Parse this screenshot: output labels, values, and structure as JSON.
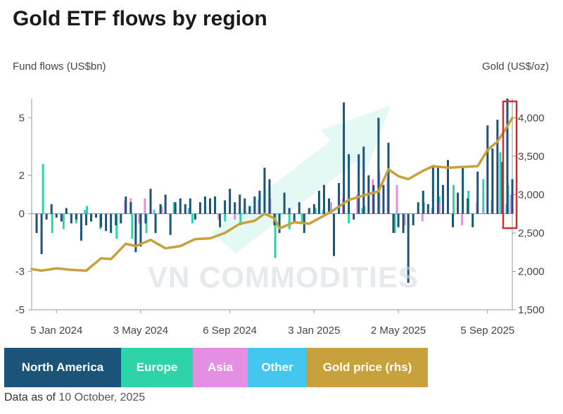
{
  "title": "Gold ETF flows by region",
  "left_axis_title": "Fund flows (US$bn)",
  "right_axis_title": "Gold (US$/oz)",
  "watermark": "VN COMMODITIES",
  "footer": {
    "prefix": "Data as of",
    "date": "10 October, 2025"
  },
  "colors": {
    "north_america": "#1b5379",
    "europe": "#2ed3a8",
    "asia": "#e58fe4",
    "other": "#44c6ef",
    "gold": "#c9a13c",
    "highlight": "#d62e2e",
    "watermark_arrow": "#2ed3a8"
  },
  "legend": [
    {
      "label": "North America",
      "color": "#1b5379"
    },
    {
      "label": "Europe",
      "color": "#2ed3a8"
    },
    {
      "label": "Asia",
      "color": "#e58fe4"
    },
    {
      "label": "Other",
      "color": "#44c6ef"
    },
    {
      "label": "Gold price (rhs)",
      "color": "#c9a13c"
    }
  ],
  "chart_data": {
    "type": "bar",
    "x_ticks": [
      "5 Jan 2024",
      "3 May 2024",
      "6 Sep 2024",
      "3 Jan 2025",
      "2 May 2025",
      "5 Sep 2025"
    ],
    "x_range": [
      "2023-12-01",
      "2025-10-10"
    ],
    "y_left": {
      "ticks": [
        5,
        2,
        0,
        -3,
        -5
      ],
      "range": [
        -5,
        6
      ]
    },
    "y_right": {
      "ticks": [
        4000,
        3500,
        3000,
        2500,
        2000,
        1500
      ],
      "range": [
        1500,
        4250
      ]
    },
    "series": [
      {
        "name": "North America",
        "values": [
          [
            "2023-12-08",
            -1.0
          ],
          [
            "2023-12-15",
            -2.1
          ],
          [
            "2023-12-22",
            -0.3
          ],
          [
            "2023-12-29",
            0.5
          ],
          [
            "2024-01-05",
            -0.2
          ],
          [
            "2024-01-12",
            -0.4
          ],
          [
            "2024-01-19",
            0.3
          ],
          [
            "2024-01-26",
            -0.5
          ],
          [
            "2024-02-02",
            -0.3
          ],
          [
            "2024-02-09",
            -1.4
          ],
          [
            "2024-02-16",
            -0.6
          ],
          [
            "2024-02-23",
            -0.4
          ],
          [
            "2024-03-01",
            -0.2
          ],
          [
            "2024-03-08",
            -0.7
          ],
          [
            "2024-03-15",
            -0.9
          ],
          [
            "2024-03-22",
            -1.0
          ],
          [
            "2024-03-29",
            -0.6
          ],
          [
            "2024-04-05",
            -0.5
          ],
          [
            "2024-04-12",
            0.9
          ],
          [
            "2024-04-19",
            0.6
          ],
          [
            "2024-04-26",
            -2.0
          ],
          [
            "2024-05-03",
            -1.7
          ],
          [
            "2024-05-10",
            -0.5
          ],
          [
            "2024-05-17",
            1.3
          ],
          [
            "2024-05-24",
            -1.0
          ],
          [
            "2024-05-31",
            0.5
          ],
          [
            "2024-06-07",
            1.0
          ],
          [
            "2024-06-14",
            -1.1
          ],
          [
            "2024-06-21",
            0.6
          ],
          [
            "2024-06-28",
            0.8
          ],
          [
            "2024-07-05",
            0.5
          ],
          [
            "2024-07-12",
            0.8
          ],
          [
            "2024-07-19",
            -0.3
          ],
          [
            "2024-07-26",
            0.6
          ],
          [
            "2024-08-02",
            0.9
          ],
          [
            "2024-08-09",
            0.8
          ],
          [
            "2024-08-16",
            0.9
          ],
          [
            "2024-08-23",
            -0.7
          ],
          [
            "2024-08-30",
            0.7
          ],
          [
            "2024-09-06",
            1.3
          ],
          [
            "2024-09-13",
            0.6
          ],
          [
            "2024-09-20",
            1.0
          ],
          [
            "2024-09-27",
            0.8
          ],
          [
            "2024-10-04",
            0.4
          ],
          [
            "2024-10-11",
            0.9
          ],
          [
            "2024-10-18",
            1.2
          ],
          [
            "2024-10-25",
            2.4
          ],
          [
            "2024-11-01",
            1.8
          ],
          [
            "2024-11-08",
            -0.6
          ],
          [
            "2024-11-15",
            -1.0
          ],
          [
            "2024-11-22",
            1.1
          ],
          [
            "2024-11-29",
            0.3
          ],
          [
            "2024-12-06",
            -0.4
          ],
          [
            "2024-12-13",
            0.6
          ],
          [
            "2024-12-20",
            -1.0
          ],
          [
            "2024-12-27",
            0.3
          ],
          [
            "2025-01-03",
            0.5
          ],
          [
            "2025-01-10",
            1.2
          ],
          [
            "2025-01-17",
            1.5
          ],
          [
            "2025-01-24",
            0.8
          ],
          [
            "2025-01-31",
            -2.2
          ],
          [
            "2025-02-07",
            1.6
          ],
          [
            "2025-02-14",
            5.8
          ],
          [
            "2025-02-21",
            3.1
          ],
          [
            "2025-02-28",
            -0.3
          ],
          [
            "2025-03-07",
            3.1
          ],
          [
            "2025-03-14",
            3.5
          ],
          [
            "2025-03-21",
            2.0
          ],
          [
            "2025-03-28",
            1.5
          ],
          [
            "2025-04-04",
            5.0
          ],
          [
            "2025-04-11",
            1.5
          ],
          [
            "2025-04-18",
            3.7
          ],
          [
            "2025-04-25",
            -1.0
          ],
          [
            "2025-05-02",
            -0.7
          ],
          [
            "2025-05-09",
            -1.0
          ],
          [
            "2025-05-16",
            -3.6
          ],
          [
            "2025-05-23",
            -0.6
          ],
          [
            "2025-05-30",
            0.6
          ],
          [
            "2025-06-06",
            1.2
          ],
          [
            "2025-06-13",
            0.5
          ],
          [
            "2025-06-20",
            2.5
          ],
          [
            "2025-06-27",
            2.4
          ],
          [
            "2025-07-04",
            1.5
          ],
          [
            "2025-07-11",
            2.8
          ],
          [
            "2025-07-18",
            -0.7
          ],
          [
            "2025-07-25",
            1.1
          ],
          [
            "2025-08-01",
            2.5
          ],
          [
            "2025-08-08",
            0.8
          ],
          [
            "2025-08-15",
            -0.7
          ],
          [
            "2025-08-22",
            2.2
          ],
          [
            "2025-09-05",
            4.6
          ],
          [
            "2025-09-12",
            3.4
          ],
          [
            "2025-09-19",
            4.9
          ],
          [
            "2025-09-26",
            2.7
          ],
          [
            "2025-10-03",
            6.0
          ],
          [
            "2025-10-10",
            1.8
          ]
        ]
      },
      {
        "name": "Europe",
        "values": [
          [
            "2023-12-20",
            2.6
          ],
          [
            "2024-01-02",
            -1.0
          ],
          [
            "2024-01-18",
            -0.8
          ],
          [
            "2024-02-05",
            -0.5
          ],
          [
            "2024-02-20",
            0.4
          ],
          [
            "2024-03-10",
            -0.8
          ],
          [
            "2024-04-02",
            -1.3
          ],
          [
            "2024-04-24",
            -1.3
          ],
          [
            "2024-05-14",
            -1.0
          ],
          [
            "2024-06-04",
            0.4
          ],
          [
            "2024-06-22",
            0.6
          ],
          [
            "2024-07-18",
            -0.5
          ],
          [
            "2024-08-12",
            0.4
          ],
          [
            "2024-09-02",
            -0.4
          ],
          [
            "2024-09-24",
            -0.6
          ],
          [
            "2024-10-20",
            0.7
          ],
          [
            "2024-11-12",
            -2.3
          ],
          [
            "2024-12-02",
            -0.8
          ],
          [
            "2024-12-20",
            -0.5
          ],
          [
            "2025-01-08",
            0.3
          ],
          [
            "2025-02-03",
            -0.5
          ],
          [
            "2025-02-24",
            -0.5
          ],
          [
            "2025-03-18",
            0.4
          ],
          [
            "2025-04-08",
            0.8
          ],
          [
            "2025-04-30",
            -1.0
          ],
          [
            "2025-05-19",
            -0.9
          ],
          [
            "2025-06-10",
            0.6
          ],
          [
            "2025-07-02",
            0.9
          ],
          [
            "2025-07-22",
            1.5
          ],
          [
            "2025-08-12",
            1.2
          ],
          [
            "2025-09-02",
            1.8
          ],
          [
            "2025-09-26",
            3.2
          ],
          [
            "2025-10-07",
            1.5
          ]
        ]
      },
      {
        "name": "Asia",
        "values": [
          [
            "2024-04-08",
            0.7
          ],
          [
            "2024-04-16",
            0.8
          ],
          [
            "2024-04-28",
            -0.5
          ],
          [
            "2024-05-06",
            0.8
          ],
          [
            "2024-05-30",
            0.3
          ],
          [
            "2024-08-18",
            -0.3
          ],
          [
            "2024-09-10",
            -0.3
          ],
          [
            "2024-10-14",
            0.6
          ],
          [
            "2024-10-30",
            0.8
          ],
          [
            "2025-01-24",
            0.6
          ],
          [
            "2025-02-10",
            0.8
          ],
          [
            "2025-03-02",
            1.0
          ],
          [
            "2025-03-24",
            1.8
          ],
          [
            "2025-04-02",
            2.2
          ],
          [
            "2025-04-14",
            1.9
          ],
          [
            "2025-04-27",
            1.5
          ],
          [
            "2025-05-08",
            -0.6
          ],
          [
            "2025-06-02",
            -0.4
          ],
          [
            "2025-06-26",
            0.6
          ],
          [
            "2025-07-28",
            -0.6
          ],
          [
            "2025-08-18",
            0.6
          ],
          [
            "2025-09-08",
            0.7
          ],
          [
            "2025-09-22",
            0.8
          ],
          [
            "2025-10-05",
            1.0
          ]
        ]
      },
      {
        "name": "Other",
        "values": [
          [
            "2024-02-12",
            0.2
          ],
          [
            "2024-05-20",
            0.2
          ],
          [
            "2024-07-08",
            0.3
          ],
          [
            "2024-10-02",
            0.3
          ],
          [
            "2025-01-14",
            0.2
          ],
          [
            "2025-03-10",
            0.3
          ],
          [
            "2025-06-17",
            0.3
          ],
          [
            "2025-08-28",
            0.4
          ],
          [
            "2025-09-30",
            0.5
          ]
        ]
      },
      {
        "name": "Gold price (rhs)",
        "values": [
          [
            "2023-12-01",
            2030
          ],
          [
            "2023-12-15",
            2010
          ],
          [
            "2024-01-05",
            2040
          ],
          [
            "2024-01-26",
            2020
          ],
          [
            "2024-02-16",
            2010
          ],
          [
            "2024-03-08",
            2170
          ],
          [
            "2024-03-22",
            2160
          ],
          [
            "2024-04-12",
            2360
          ],
          [
            "2024-04-26",
            2330
          ],
          [
            "2024-05-17",
            2410
          ],
          [
            "2024-06-07",
            2300
          ],
          [
            "2024-06-28",
            2330
          ],
          [
            "2024-07-19",
            2420
          ],
          [
            "2024-08-09",
            2430
          ],
          [
            "2024-08-30",
            2500
          ],
          [
            "2024-09-20",
            2620
          ],
          [
            "2024-10-11",
            2660
          ],
          [
            "2024-10-25",
            2750
          ],
          [
            "2024-11-08",
            2690
          ],
          [
            "2024-11-15",
            2560
          ],
          [
            "2024-12-06",
            2640
          ],
          [
            "2024-12-27",
            2620
          ],
          [
            "2025-01-10",
            2690
          ],
          [
            "2025-01-31",
            2800
          ],
          [
            "2025-02-21",
            2930
          ],
          [
            "2025-03-14",
            2990
          ],
          [
            "2025-04-04",
            3040
          ],
          [
            "2025-04-18",
            3330
          ],
          [
            "2025-05-02",
            3240
          ],
          [
            "2025-05-16",
            3200
          ],
          [
            "2025-06-06",
            3310
          ],
          [
            "2025-06-20",
            3370
          ],
          [
            "2025-07-11",
            3350
          ],
          [
            "2025-08-01",
            3360
          ],
          [
            "2025-08-22",
            3370
          ],
          [
            "2025-09-05",
            3580
          ],
          [
            "2025-09-19",
            3690
          ],
          [
            "2025-10-03",
            3890
          ],
          [
            "2025-10-10",
            4000
          ]
        ]
      }
    ],
    "highlight": {
      "from": "2025-09-30",
      "to": "2025-10-10"
    },
    "xlabel": "",
    "grid": false,
    "legend_position": "bottom"
  }
}
